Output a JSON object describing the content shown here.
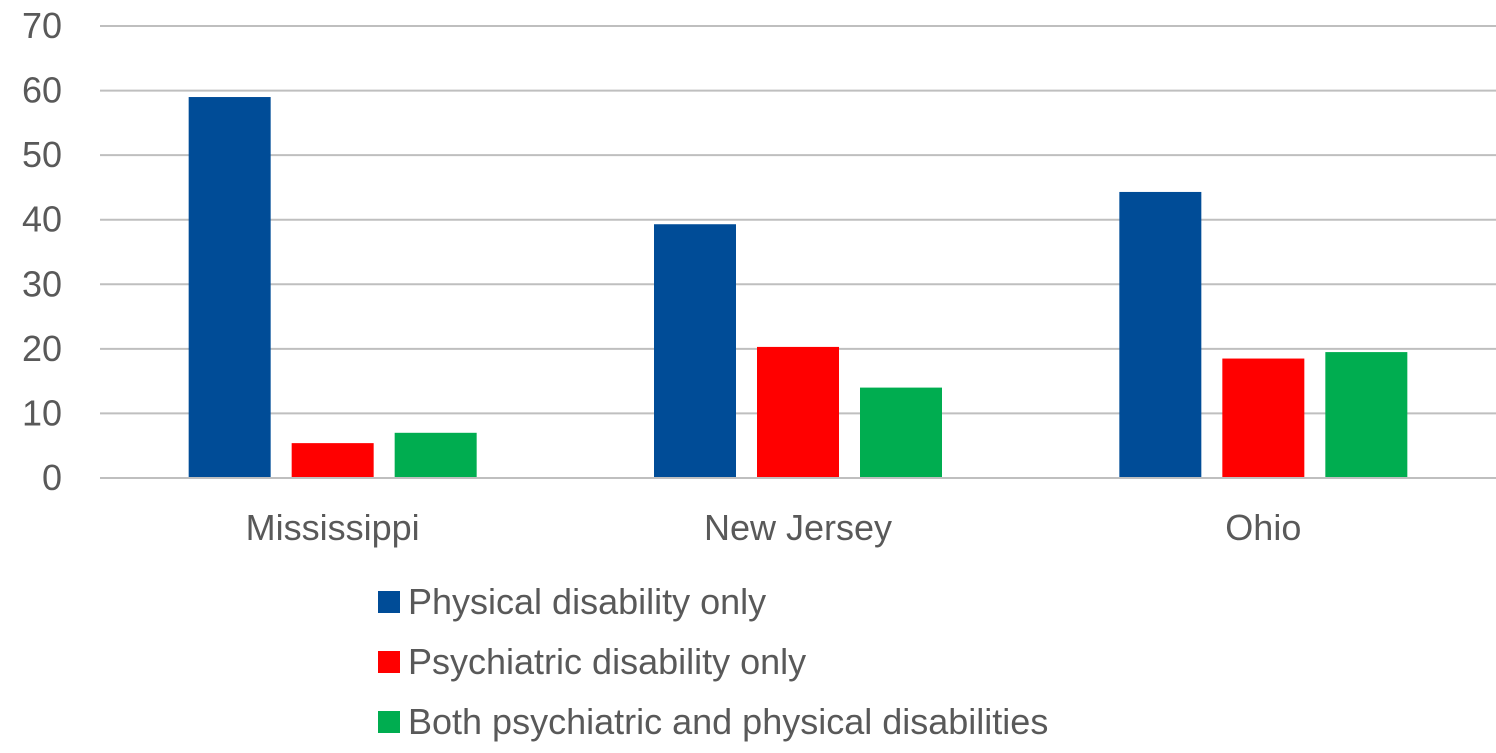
{
  "chart_data": {
    "type": "bar",
    "categories": [
      "Mississippi",
      "New Jersey",
      "Ohio"
    ],
    "series": [
      {
        "name": "Physical disability only",
        "color": "#004C97",
        "values": [
          59,
          39.3,
          44.3
        ]
      },
      {
        "name": "Psychiatric disability only",
        "color": "#FF0000",
        "values": [
          5.4,
          20.3,
          18.5
        ]
      },
      {
        "name": "Both psychiatric and physical disabilities",
        "color": "#00AD50",
        "values": [
          7,
          14,
          19.5
        ]
      }
    ],
    "ylim": [
      0,
      70
    ],
    "yticks": [
      "0",
      "10",
      "20",
      "30",
      "40",
      "50",
      "60",
      "70"
    ],
    "grid": true,
    "legend_position": "bottom"
  }
}
